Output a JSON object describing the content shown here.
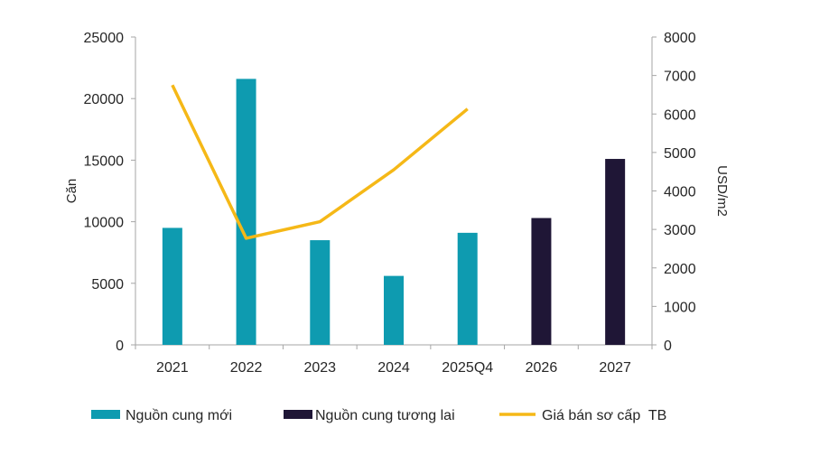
{
  "chart_data": {
    "type": "bar",
    "categories": [
      "2021",
      "2022",
      "2023",
      "2024",
      "2025Q4",
      "2026",
      "2027"
    ],
    "series": [
      {
        "name": "Nguồn cung mới",
        "type": "bar",
        "axis": "left",
        "color": "#0e9bb0",
        "values": [
          9500,
          21600,
          8500,
          5600,
          9100,
          null,
          null
        ]
      },
      {
        "name": "Nguồn cung tương lai",
        "type": "bar",
        "axis": "left",
        "color": "#1f1636",
        "values": [
          null,
          null,
          null,
          null,
          null,
          10300,
          15100
        ]
      },
      {
        "name": "Giá bán sơ cấp  TB",
        "type": "line",
        "axis": "right",
        "color": "#f5b817",
        "values": [
          6750,
          2770,
          3200,
          4550,
          6130,
          null,
          null
        ]
      }
    ],
    "ylabel": "Căn",
    "y2label": "USD/m2",
    "ylim": [
      0,
      25000
    ],
    "y2lim": [
      0,
      8000
    ],
    "yticks": [
      "0",
      "5000",
      "10000",
      "15000",
      "20000",
      "25000"
    ],
    "y2ticks": [
      "0",
      "1000",
      "2000",
      "3000",
      "4000",
      "5000",
      "6000",
      "7000",
      "8000"
    ],
    "legend_position": "bottom",
    "grid": false
  }
}
